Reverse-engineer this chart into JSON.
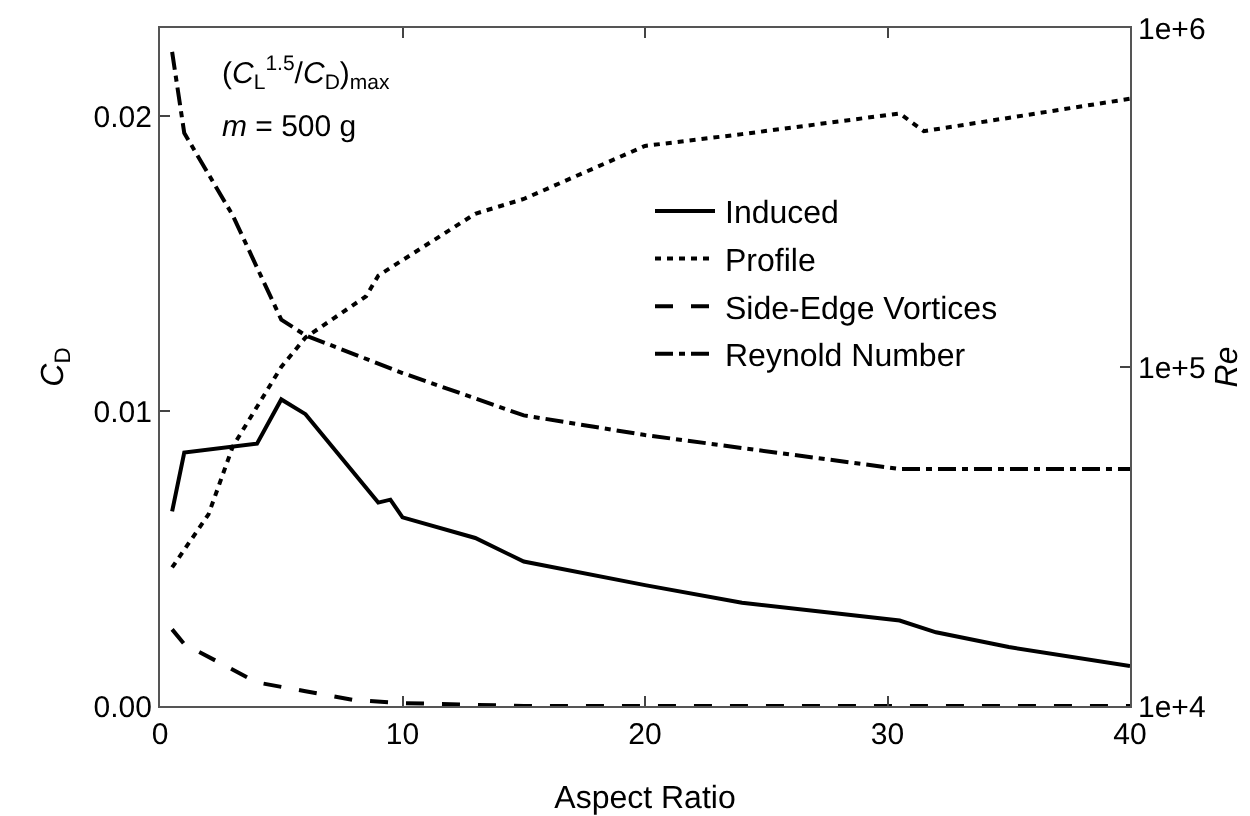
{
  "chart_data": {
    "type": "line",
    "xlabel": "Aspect Ratio",
    "ylabel": "C$_{D}$",
    "y2label": "Re",
    "annotations": [
      "(C$_{L}$$^{1.5}$/C$_{D}$)$_{max}$",
      "m = 500 g"
    ],
    "xlim": [
      0,
      40
    ],
    "xticks": [
      0,
      10,
      20,
      30,
      40
    ],
    "ylim": [
      0,
      0.023
    ],
    "yticks": [
      {
        "value": 0,
        "label": "0.00"
      },
      {
        "value": 0.01,
        "label": "0.01"
      },
      {
        "value": 0.02,
        "label": "0.02"
      }
    ],
    "y2lim": [
      10000,
      1000000
    ],
    "y2ticks": [
      {
        "value": 10000,
        "label": "1e+4"
      },
      {
        "value": 100000,
        "label": "1e+5"
      },
      {
        "value": 1000000,
        "label": "1e+6"
      }
    ],
    "log": "y2",
    "grid": false,
    "legend": "top right",
    "marker": "none",
    "series": [
      {
        "name": "Induced",
        "color": "#000000",
        "line_style": "solid",
        "x": [
          0.5,
          1,
          4,
          5,
          6,
          9,
          9.5,
          10,
          13,
          15,
          20,
          24,
          30.5,
          32,
          35,
          40
        ],
        "values": [
          0.0066,
          0.0086,
          0.0089,
          0.0104,
          0.0099,
          0.0069,
          0.007,
          0.0064,
          0.0057,
          0.0049,
          0.0041,
          0.0035,
          0.0029,
          0.0025,
          0.002,
          0.00136
        ]
      },
      {
        "name": "Profile",
        "color": "#000000",
        "line_style": "dotted",
        "x": [
          0.5,
          2,
          3,
          5,
          6,
          8.5,
          9,
          13,
          15,
          20,
          24,
          30.5,
          31.5,
          40
        ],
        "values": [
          0.0047,
          0.0065,
          0.0088,
          0.0115,
          0.0125,
          0.0139,
          0.0146,
          0.0167,
          0.0172,
          0.019,
          0.0194,
          0.0201,
          0.0195,
          0.0206
        ]
      },
      {
        "name": "Side-Edge Vortices",
        "color": "#000000",
        "line_style": "dashed",
        "x": [
          0.5,
          1,
          4,
          6,
          8,
          10,
          15,
          20,
          30,
          40
        ],
        "values": [
          0.0026,
          0.0021,
          0.0008,
          0.0005,
          0.0002,
          0.0001,
          0,
          0,
          0,
          0
        ]
      },
      {
        "name": "Reynold Number",
        "color": "#000000",
        "line_style": "dashdot",
        "axis": "y2",
        "x": [
          0.5,
          1,
          3,
          5,
          6,
          10,
          15,
          20,
          30.5,
          40
        ],
        "values": [
          850000,
          490000,
          280000,
          138000,
          124000,
          96000,
          72000,
          63000,
          50000,
          50000
        ]
      }
    ]
  }
}
